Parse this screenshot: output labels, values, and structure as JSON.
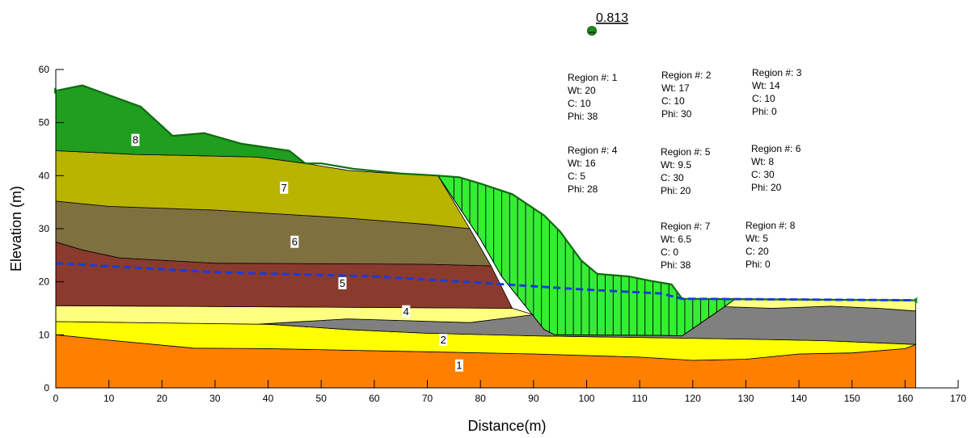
{
  "chart_data": {
    "type": "area",
    "xlabel": "Distance(m)",
    "ylabel": "Elevation (m)",
    "xlim": [
      0,
      170
    ],
    "ylim": [
      0,
      60
    ],
    "x_ticks": [
      0,
      10,
      20,
      30,
      40,
      50,
      60,
      70,
      80,
      90,
      100,
      110,
      120,
      130,
      140,
      150,
      160,
      170
    ],
    "y_ticks": [
      0,
      10,
      20,
      30,
      40,
      50,
      60
    ],
    "factor_of_safety": {
      "label": "0.813",
      "x": 101,
      "y": 67.3
    },
    "layers": [
      {
        "id": "1",
        "color": "#FF8000",
        "label_at": [
          76,
          4
        ],
        "polygon": [
          [
            0,
            10
          ],
          [
            10,
            9
          ],
          [
            26,
            7.5
          ],
          [
            40,
            7.4
          ],
          [
            55,
            7.1
          ],
          [
            70,
            6.8
          ],
          [
            90,
            6.4
          ],
          [
            110,
            5.8
          ],
          [
            120,
            5.2
          ],
          [
            130,
            5.4
          ],
          [
            140,
            6.4
          ],
          [
            150,
            6.6
          ],
          [
            160,
            7.4
          ],
          [
            162,
            8.2
          ],
          [
            162,
            0
          ],
          [
            0,
            0
          ]
        ]
      },
      {
        "id": "2",
        "color": "#FFFF00",
        "label_at": [
          73,
          8.8
        ],
        "polygon": [
          [
            0,
            12.5
          ],
          [
            40,
            12
          ],
          [
            55,
            11
          ],
          [
            70,
            10.3
          ],
          [
            90,
            9.8
          ],
          [
            110,
            9.5
          ],
          [
            130,
            9.2
          ],
          [
            145,
            8.9
          ],
          [
            162,
            8.2
          ],
          [
            160,
            7.4
          ],
          [
            150,
            6.6
          ],
          [
            140,
            6.4
          ],
          [
            130,
            5.4
          ],
          [
            120,
            5.2
          ],
          [
            110,
            5.8
          ],
          [
            90,
            6.4
          ],
          [
            70,
            6.8
          ],
          [
            55,
            7.1
          ],
          [
            40,
            7.4
          ],
          [
            26,
            7.5
          ],
          [
            10,
            9
          ],
          [
            0,
            10
          ]
        ]
      },
      {
        "id": "3",
        "color": "#808080",
        "label_at": null,
        "polygon": [
          [
            38,
            12
          ],
          [
            55,
            13
          ],
          [
            78,
            12.3
          ],
          [
            90,
            13.8
          ],
          [
            94,
            11
          ],
          [
            110,
            10
          ],
          [
            117,
            9.8
          ],
          [
            118,
            9.8
          ],
          [
            126,
            15.3
          ],
          [
            135,
            15
          ],
          [
            146,
            15.4
          ],
          [
            155,
            15
          ],
          [
            162,
            14.5
          ],
          [
            162,
            8.2
          ],
          [
            145,
            8.9
          ],
          [
            130,
            9.2
          ],
          [
            110,
            9.5
          ],
          [
            90,
            9.8
          ],
          [
            70,
            10.3
          ],
          [
            55,
            11
          ],
          [
            40,
            12
          ]
        ]
      },
      {
        "id": "4",
        "color": "#FFFF80",
        "label_at": [
          66,
          14.2
        ],
        "polygon": [
          [
            0,
            15.5
          ],
          [
            86,
            15
          ],
          [
            90,
            13.8
          ],
          [
            78,
            12.3
          ],
          [
            55,
            13
          ],
          [
            38,
            12
          ],
          [
            0,
            12.5
          ]
        ]
      },
      {
        "id": "4b",
        "color": "#FFFF80",
        "label_at": null,
        "polygon": [
          [
            126,
            15.3
          ],
          [
            128,
            16.8
          ],
          [
            162,
            16.5
          ],
          [
            162,
            14.5
          ],
          [
            155,
            15
          ],
          [
            146,
            15.4
          ],
          [
            135,
            15
          ]
        ]
      },
      {
        "id": "5",
        "color": "#8B3A2E",
        "label_at": [
          54,
          19.5
        ],
        "polygon": [
          [
            0,
            27.5
          ],
          [
            5,
            26
          ],
          [
            12,
            24.5
          ],
          [
            30,
            23.5
          ],
          [
            70,
            23.3
          ],
          [
            82,
            23
          ],
          [
            86,
            15
          ],
          [
            0,
            15.5
          ]
        ]
      },
      {
        "id": "6",
        "color": "#7F7040",
        "label_at": [
          45,
          27.3
        ],
        "polygon": [
          [
            0,
            35.2
          ],
          [
            10,
            34.2
          ],
          [
            30,
            33.5
          ],
          [
            55,
            32
          ],
          [
            70,
            30.8
          ],
          [
            78,
            30
          ],
          [
            82,
            23
          ],
          [
            70,
            23.3
          ],
          [
            30,
            23.5
          ],
          [
            12,
            24.5
          ],
          [
            5,
            26
          ],
          [
            0,
            27.5
          ]
        ]
      },
      {
        "id": "7",
        "color": "#B8B400",
        "label_at": [
          43,
          37.5
        ],
        "polygon": [
          [
            0,
            44.7
          ],
          [
            15,
            44
          ],
          [
            25,
            43.8
          ],
          [
            38,
            43.5
          ],
          [
            47,
            42.3
          ],
          [
            55,
            41
          ],
          [
            65,
            40.3
          ],
          [
            72,
            40
          ],
          [
            78,
            30
          ],
          [
            70,
            30.8
          ],
          [
            55,
            32
          ],
          [
            30,
            33.5
          ],
          [
            10,
            34.2
          ],
          [
            0,
            35.2
          ]
        ]
      },
      {
        "id": "8",
        "color": "#1F9E1F",
        "label_at": [
          15,
          46.5
        ],
        "polygon": [
          [
            0,
            56
          ],
          [
            5,
            57
          ],
          [
            16,
            53
          ],
          [
            22,
            47.5
          ],
          [
            28,
            48
          ],
          [
            35,
            46
          ],
          [
            44,
            44.7
          ],
          [
            47,
            42.3
          ],
          [
            38,
            43.5
          ],
          [
            25,
            43.8
          ],
          [
            15,
            44
          ],
          [
            0,
            44.7
          ]
        ]
      }
    ],
    "ground_surface": [
      [
        0,
        56
      ],
      [
        5,
        57
      ],
      [
        16,
        53
      ],
      [
        22,
        47.5
      ],
      [
        28,
        48
      ],
      [
        35,
        46
      ],
      [
        44,
        44.7
      ],
      [
        47,
        42.3
      ],
      [
        50,
        42.3
      ],
      [
        56,
        41.3
      ],
      [
        65,
        40.4
      ],
      [
        72,
        40
      ],
      [
        76,
        39.7
      ],
      [
        80,
        38.5
      ],
      [
        86,
        36.5
      ],
      [
        92,
        32.5
      ],
      [
        95,
        29.5
      ],
      [
        99,
        24
      ],
      [
        102,
        21.5
      ],
      [
        108,
        21
      ],
      [
        112,
        20.2
      ],
      [
        116,
        19.5
      ],
      [
        118,
        16.8
      ],
      [
        162,
        16.5
      ]
    ],
    "slip_mass": {
      "color": "#33EE33",
      "polygon": [
        [
          72,
          40
        ],
        [
          76,
          39.7
        ],
        [
          80,
          38.5
        ],
        [
          86,
          36.5
        ],
        [
          92,
          32.5
        ],
        [
          95,
          29.5
        ],
        [
          99,
          24
        ],
        [
          102,
          21.5
        ],
        [
          108,
          21
        ],
        [
          112,
          20.2
        ],
        [
          116,
          19.5
        ],
        [
          118,
          16.8
        ],
        [
          124,
          16.8
        ],
        [
          128,
          16.8
        ],
        [
          126,
          15.3
        ],
        [
          118,
          9.8
        ],
        [
          114,
          9.9
        ],
        [
          94,
          10
        ],
        [
          92,
          11
        ],
        [
          88,
          16
        ],
        [
          84,
          21
        ],
        [
          80,
          28
        ],
        [
          76,
          34
        ]
      ],
      "slice_x": [
        75,
        76.5,
        78,
        79.5,
        81,
        82.5,
        84,
        85.5,
        87,
        88.5,
        90,
        91.5,
        93,
        94.5,
        96,
        97.5,
        99,
        100.5,
        102,
        103.5,
        105,
        106.5,
        108,
        109.5,
        111,
        112.5,
        114,
        115.5,
        117,
        118.5,
        120,
        121.5,
        123,
        124.5,
        126
      ]
    },
    "water_table": {
      "color": "#1A3CDC",
      "points": [
        [
          0,
          23.5
        ],
        [
          30,
          21.8
        ],
        [
          60,
          21
        ],
        [
          80,
          19.8
        ],
        [
          100,
          18.5
        ],
        [
          114,
          17.8
        ],
        [
          118,
          16.8
        ],
        [
          162,
          16.5
        ]
      ]
    },
    "regions": [
      {
        "title": "Region #: 1",
        "wt": "Wt: 20",
        "c": "C: 10",
        "phi": "Phi: 38"
      },
      {
        "title": "Region #: 2",
        "wt": "Wt: 17",
        "c": "C: 10",
        "phi": "Phi: 30"
      },
      {
        "title": "Region #: 3",
        "wt": "Wt: 14",
        "c": "C: 10",
        "phi": "Phi: 0"
      },
      {
        "title": "Region #: 4",
        "wt": "Wt: 16",
        "c": "C: 5",
        "phi": "Phi: 28"
      },
      {
        "title": "Region #: 5",
        "wt": "Wt: 9.5",
        "c": "C: 30",
        "phi": "Phi: 20"
      },
      {
        "title": "Region #: 6",
        "wt": "Wt: 8",
        "c": "C: 30",
        "phi": "Phi: 20"
      },
      {
        "title": "Region #: 7",
        "wt": "Wt: 6.5",
        "c": "C: 0",
        "phi": "Phi: 38"
      },
      {
        "title": "Region #: 8",
        "wt": "Wt: 5",
        "c": "C: 20",
        "phi": "Phi: 0"
      }
    ]
  }
}
